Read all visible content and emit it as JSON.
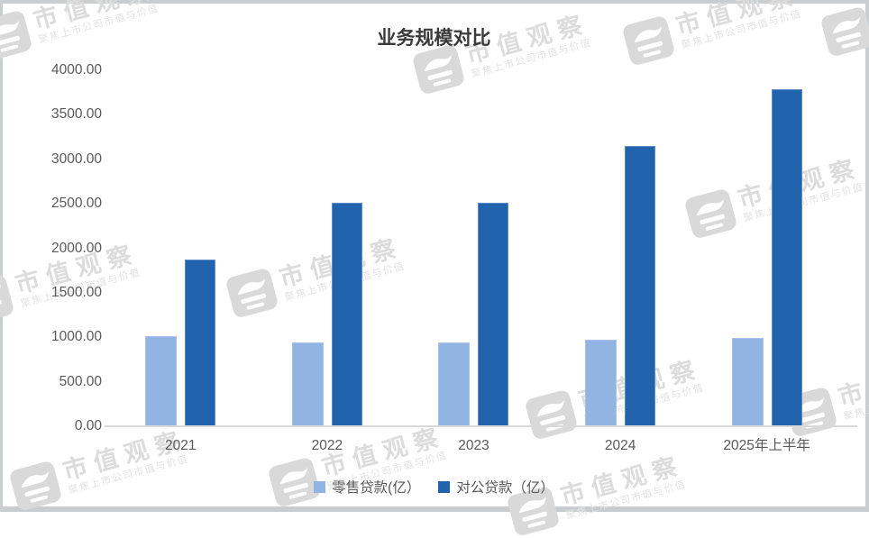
{
  "watermark": {
    "text": "市值观察",
    "subtext": "聚焦上市公司市值与价值"
  },
  "chart_data": {
    "type": "bar",
    "title": "业务规模对比",
    "categories": [
      "2021",
      "2022",
      "2023",
      "2024",
      "2025年上半年"
    ],
    "series": [
      {
        "name": "零售贷款(亿）",
        "color": "#92B4E2",
        "values": [
          1010,
          940,
          945,
          975,
          990
        ]
      },
      {
        "name": "对公贷款（亿）",
        "color": "#2263AE",
        "values": [
          1870,
          2510,
          2515,
          3150,
          3790
        ]
      }
    ],
    "ylim": [
      0,
      4000
    ],
    "ytick_step": 500,
    "ytick_decimals": 2,
    "grid": false,
    "legend_position": "bottom",
    "axis_color": "#d9d9d9",
    "label_color": "#595959"
  }
}
